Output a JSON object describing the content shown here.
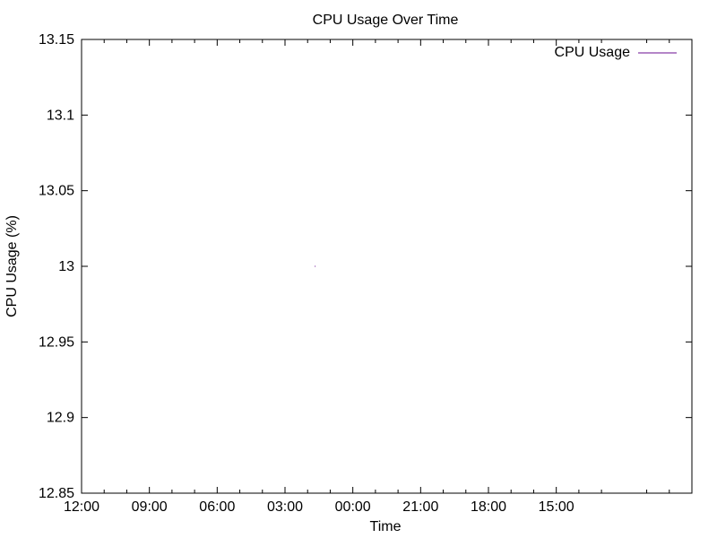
{
  "chart_data": {
    "type": "line",
    "title": "CPU Usage Over Time",
    "xlabel": "Time",
    "ylabel": "CPU Usage (%)",
    "x_tick_labels": [
      "12:00",
      "09:00",
      "06:00",
      "03:00",
      "00:00",
      "21:00",
      "18:00",
      "15:00"
    ],
    "y_tick_labels": [
      "13.15",
      "13.1",
      "13.05",
      "13",
      "12.95",
      "12.9",
      "12.85"
    ],
    "y_ticks": [
      13.15,
      13.1,
      13.05,
      13,
      12.95,
      12.9,
      12.85
    ],
    "ylim": [
      12.85,
      13.15
    ],
    "xlim_hours": [
      12,
      -15
    ],
    "x_axis_reversed": true,
    "grid": false,
    "legend_position": "top-right",
    "series": [
      {
        "name": "CPU Usage",
        "color": "#6a0d91",
        "points": [
          {
            "x": "01:40",
            "y": 13
          }
        ]
      }
    ]
  }
}
